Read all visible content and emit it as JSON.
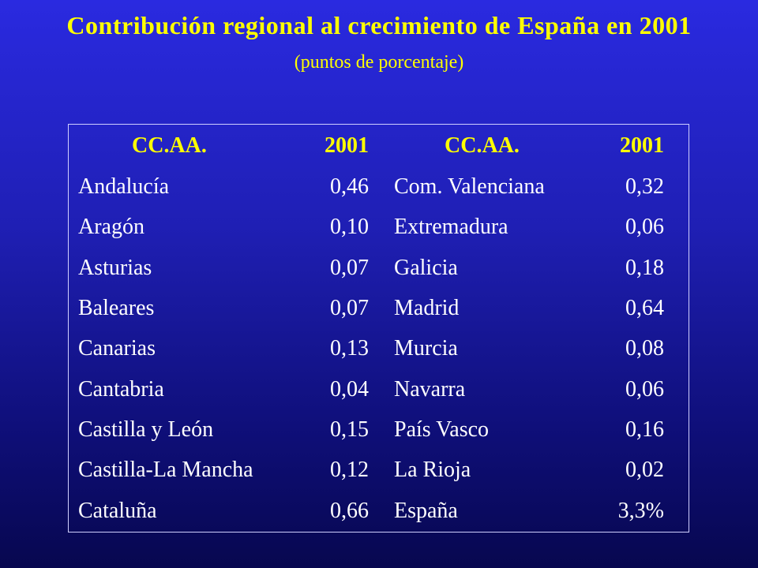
{
  "title": "Contribución regional al crecimiento de España en 2001",
  "subtitle": "(puntos de porcentaje)",
  "table": {
    "headers": [
      "CC.AA.",
      "2001",
      "CC.AA.",
      "2001"
    ],
    "rows": [
      [
        "Andalucía",
        "0,46",
        "Com. Valenciana",
        "0,32"
      ],
      [
        "Aragón",
        "0,10",
        "Extremadura",
        "0,06"
      ],
      [
        "Asturias",
        "0,07",
        "Galicia",
        "0,18"
      ],
      [
        "Baleares",
        "0,07",
        "Madrid",
        "0,64"
      ],
      [
        "Canarias",
        "0,13",
        "Murcia",
        "0,08"
      ],
      [
        "Cantabria",
        "0,04",
        "Navarra",
        "0,06"
      ],
      [
        "Castilla y León",
        "0,15",
        "País Vasco",
        "0,16"
      ],
      [
        "Castilla-La Mancha",
        "0,12",
        "La Rioja",
        "0,02"
      ],
      [
        "Cataluña",
        "0,66",
        "España",
        "3,3%"
      ]
    ]
  },
  "colors": {
    "title": "#ffff00",
    "text": "#ffffff",
    "background_top": "#2a2ae0",
    "background_bottom": "#07074f"
  }
}
